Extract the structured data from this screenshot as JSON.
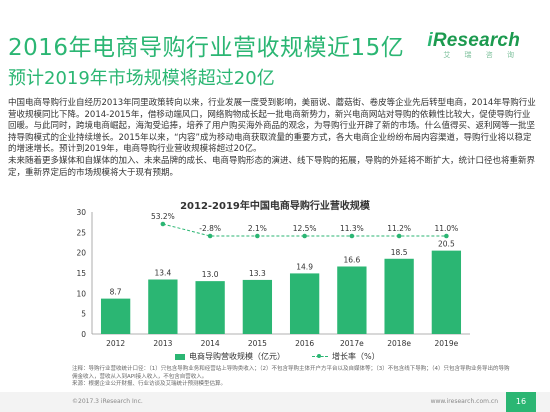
{
  "header": {
    "title": "2016年电商导购行业营收规模近15亿",
    "subtitle": "预计2019年市场规模将超过20亿"
  },
  "logo": {
    "brand_prefix": "i",
    "brand_rest": "Research",
    "tagline": "艾 瑞 咨 询"
  },
  "body": {
    "para1": "中国电商导购行业自经历2013年同里政策转向以来，行业发展一度受到影响，美丽说、蘑菇街、卷皮等企业先后转型电商，2014年导购行业营收规模同比下降。2014-2015年，借移动端风口，网络购物成长起一批电商新势力，新兴电商网站对导购的依赖性比较大，促使导购行业回暖。与此同时，跨境电商崛起，海淘受追捧，培养了用户购买海外商品的观念，为导购行业开辟了新的市场。什么值得买、返利网等一批坚持导购模式的企业持续增长。2015年以来，“内容”成为移动电商获取流量的重要方式，各大电商企业纷纷布局内容渠道，导购行业将以稳定的增速增长。预计到2019年，电商导购行业营收规模将超过20亿。",
    "para2": "未来随着更多媒体和自媒体的加入、未来品牌的成长、电商导购形态的演进、线下导购的拓展，导购的外延将不断扩大，统计口径也将重新界定，重新界定后的市场规模将大于现有预期。"
  },
  "chart_data": {
    "type": "bar",
    "title": "2012-2019年中国电商导购行业营收规模",
    "categories": [
      "2012",
      "2013",
      "2014",
      "2015",
      "2016",
      "2017e",
      "2018e",
      "2019e"
    ],
    "series": [
      {
        "name": "电商导购营收规模（亿元）",
        "type": "bar",
        "values": [
          8.7,
          13.4,
          13.0,
          13.3,
          14.9,
          16.6,
          18.5,
          20.5
        ],
        "value_labels": [
          "8.7",
          "13.4",
          "13.0",
          "13.3",
          "14.9",
          "16.6",
          "18.5",
          "20.5"
        ]
      },
      {
        "name": "增长率（%）",
        "type": "line",
        "values": [
          null,
          53.2,
          -2.8,
          2.1,
          12.5,
          11.3,
          11.2,
          11.0
        ],
        "value_labels": [
          "",
          "53.2%",
          "-2.8%",
          "2.1%",
          "12.5%",
          "11.3%",
          "11.2%",
          "11.0%"
        ]
      }
    ],
    "y_axis": {
      "min": 0,
      "max": 30,
      "ticks": [
        0,
        5,
        10,
        15,
        20,
        25,
        30
      ]
    },
    "grid": false,
    "legend_position": "bottom",
    "colors": {
      "bar": "#2bb673",
      "line": "#2bb673",
      "axis": "#999999"
    }
  },
  "source": {
    "note": "注释：导购行业营收统计口径：（1）只包含导购业务和经营站上导购类收入；（2）不包含导购主体开户方平台以及自媒体等；（3）不包含线下导购；（4）只包含导购业务导出的导购佣金收入，营收从入到API接入收入，不包含自营收入。",
    "source_line": "来源：根据企业公开财报、行业访谈及艾瑞统计预测模型估算。"
  },
  "footer": {
    "copyright": "©2017.3 iResearch Inc.",
    "website": "www.iresearch.com.cn",
    "page": "16"
  }
}
